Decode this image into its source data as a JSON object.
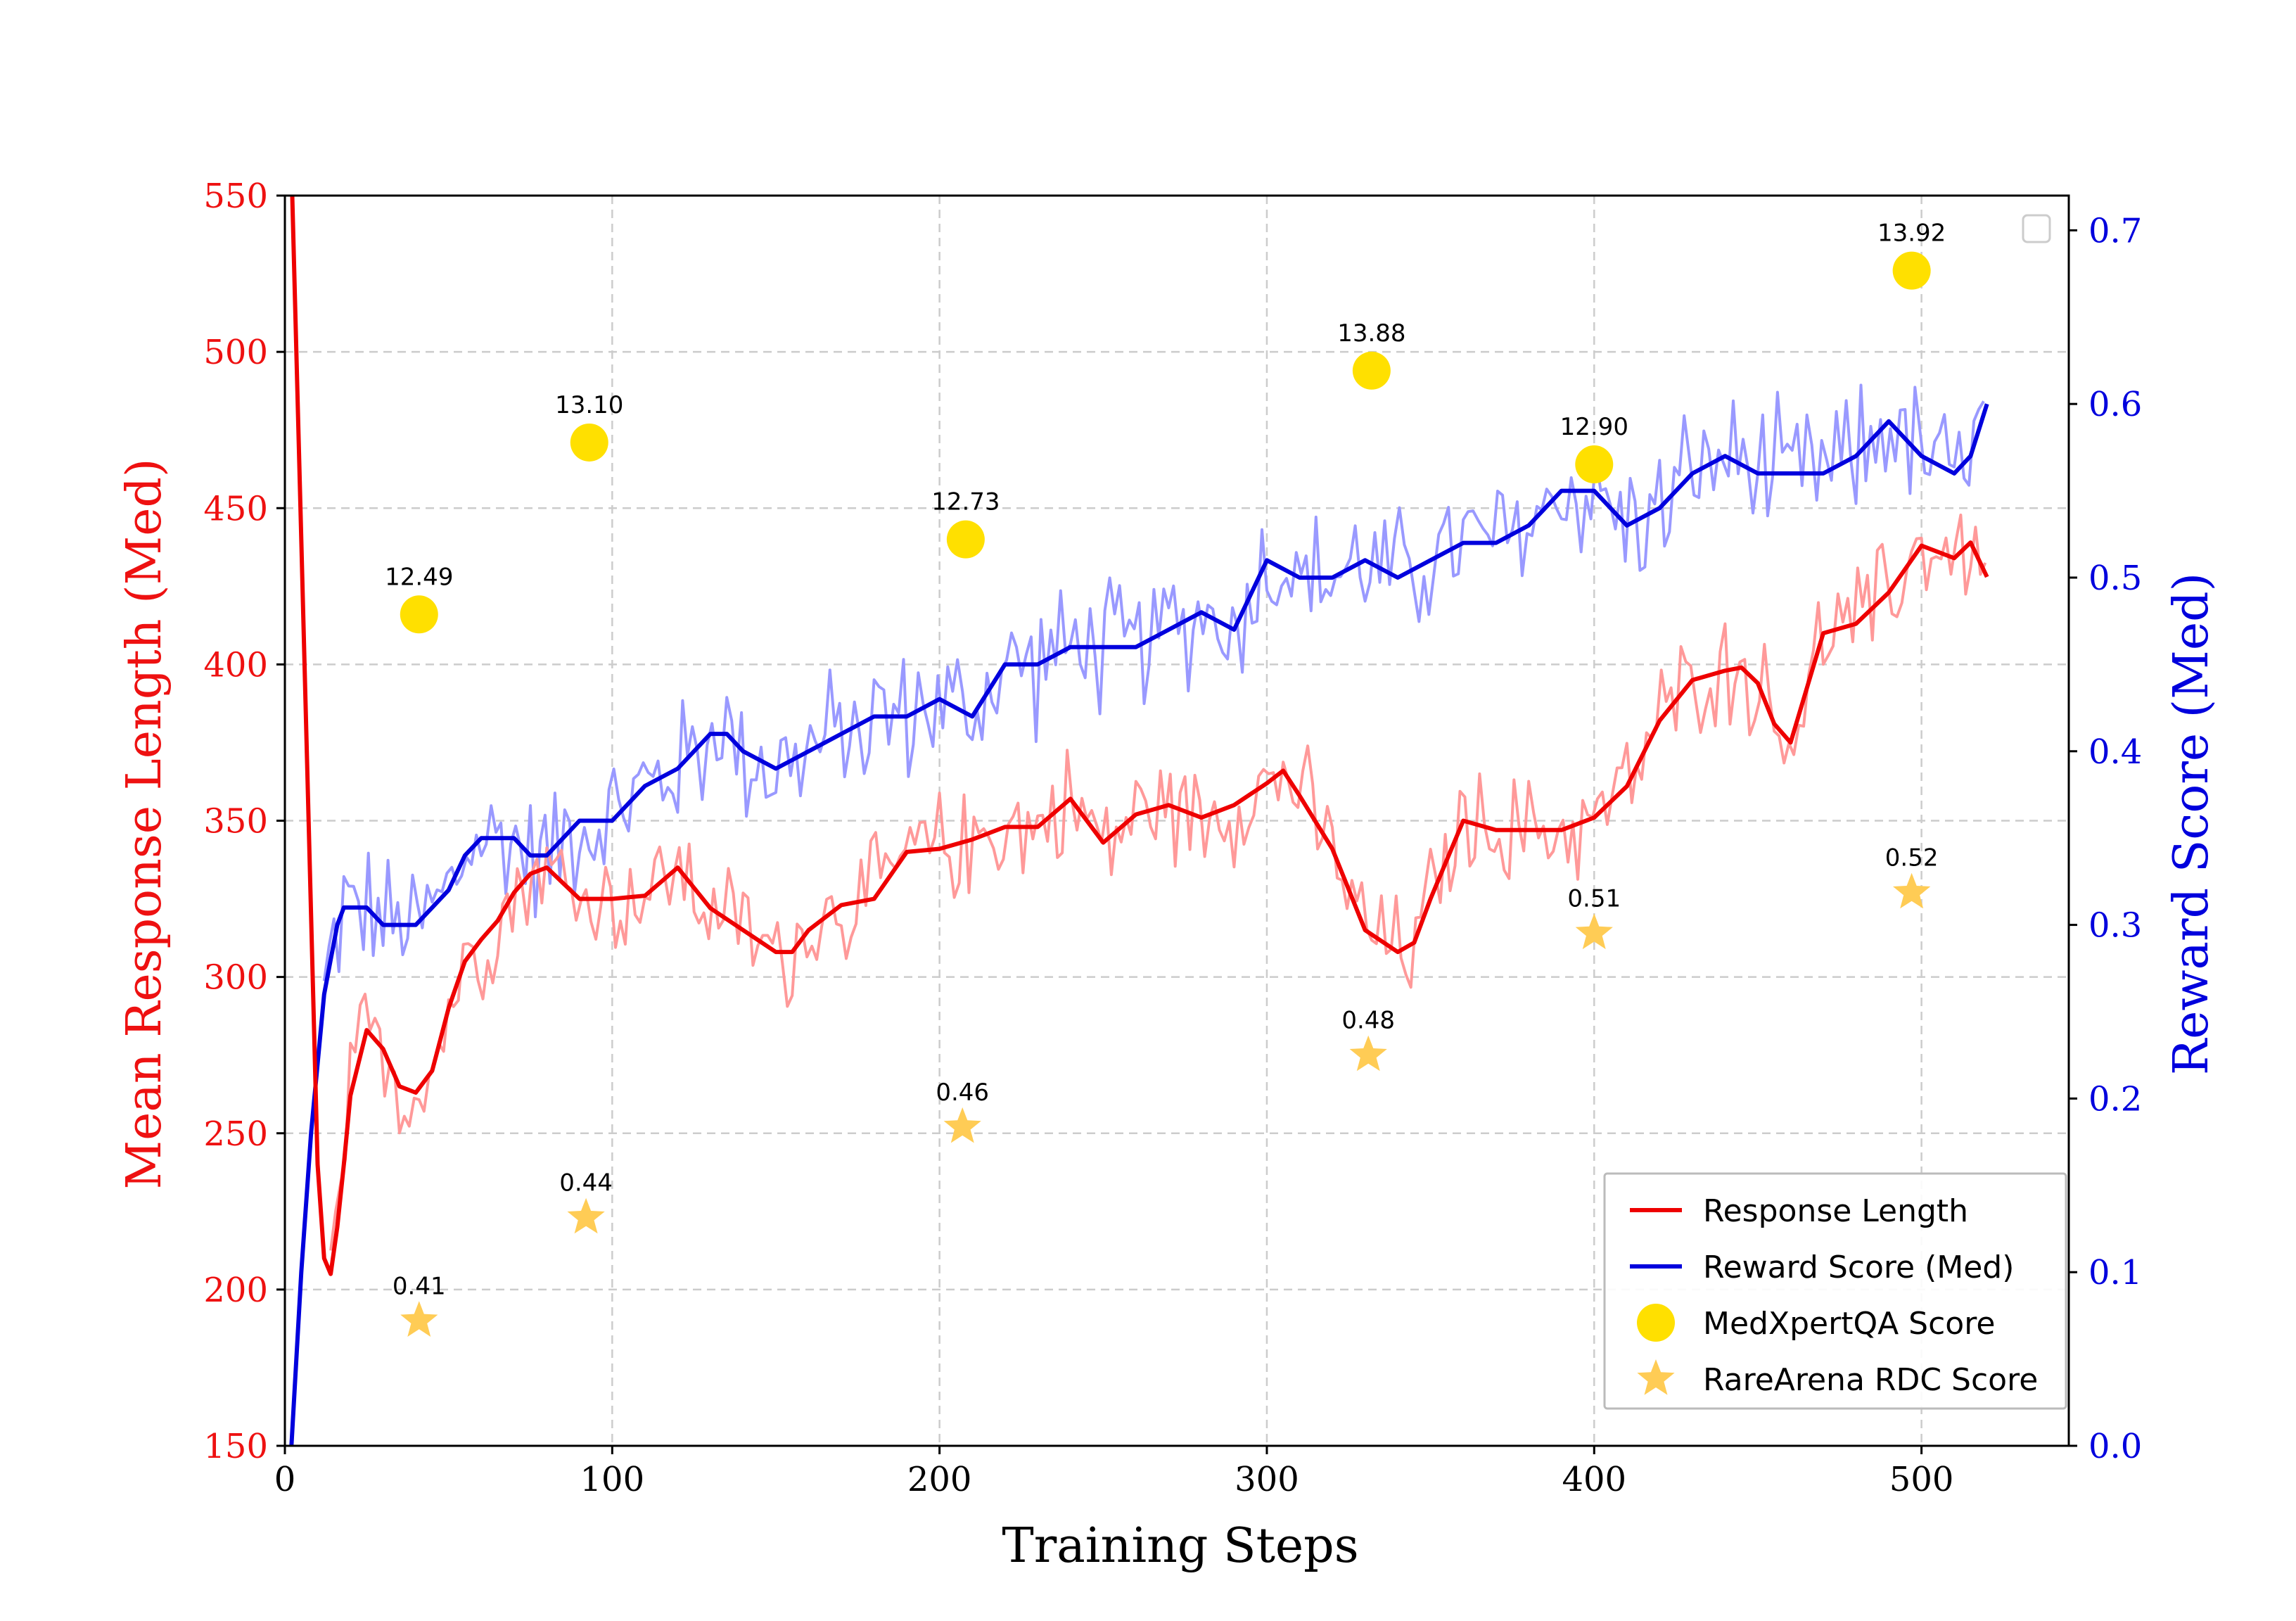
{
  "chart_data": {
    "type": "line",
    "xlabel": "Training Steps",
    "ylabel_left": "Mean Response Length (Med)",
    "ylabel_right": "Reward Score (Med)",
    "xlim": [
      0,
      545
    ],
    "ylim_left": [
      150,
      550
    ],
    "ylim_right": [
      0.0,
      0.72
    ],
    "x_ticks": [
      0,
      100,
      200,
      300,
      400,
      500
    ],
    "y_left_ticks": [
      150,
      200,
      250,
      300,
      350,
      400,
      450,
      500,
      550
    ],
    "y_right_ticks": [
      0.0,
      0.1,
      0.2,
      0.3,
      0.4,
      0.5,
      0.6,
      0.7
    ],
    "grid": true,
    "legend_position": "lower-right",
    "colors": {
      "left_axis": "#ee1111",
      "right_axis": "#0000dd",
      "length_line": "#ee0000",
      "length_raw": "#ff9999",
      "reward_line": "#0000dd",
      "reward_raw": "#9999ff",
      "medxpert": "#ffe000",
      "rarearena": "#ffcc55"
    },
    "series": [
      {
        "name": "Response  Length",
        "axis": "left",
        "x": [
          2,
          5,
          8,
          10,
          12,
          14,
          16,
          18,
          20,
          25,
          30,
          35,
          40,
          45,
          50,
          55,
          60,
          65,
          70,
          75,
          80,
          85,
          90,
          95,
          100,
          110,
          120,
          130,
          140,
          150,
          155,
          160,
          170,
          180,
          190,
          200,
          210,
          220,
          230,
          240,
          250,
          260,
          270,
          280,
          290,
          300,
          305,
          310,
          320,
          330,
          340,
          345,
          350,
          360,
          370,
          380,
          390,
          400,
          410,
          420,
          430,
          440,
          445,
          450,
          455,
          460,
          470,
          480,
          490,
          500,
          510,
          515,
          520
        ],
        "values": [
          560,
          440,
          320,
          240,
          210,
          205,
          220,
          240,
          262,
          283,
          277,
          265,
          263,
          270,
          290,
          305,
          312,
          318,
          327,
          333,
          335,
          330,
          325,
          325,
          325,
          326,
          335,
          322,
          315,
          308,
          308,
          315,
          323,
          325,
          340,
          341,
          344,
          348,
          348,
          357,
          343,
          352,
          355,
          351,
          355,
          362,
          366,
          358,
          341,
          315,
          308,
          311,
          325,
          350,
          347,
          347,
          347,
          351,
          361,
          382,
          395,
          398,
          399,
          394,
          381,
          375,
          410,
          413,
          423,
          438,
          434,
          439,
          428
        ]
      },
      {
        "name": "Reward Score (Med)",
        "axis": "right",
        "x": [
          2,
          5,
          8,
          10,
          12,
          14,
          16,
          18,
          20,
          25,
          30,
          35,
          40,
          45,
          50,
          55,
          60,
          65,
          70,
          75,
          80,
          85,
          90,
          95,
          100,
          110,
          120,
          130,
          135,
          140,
          150,
          160,
          170,
          180,
          190,
          200,
          210,
          220,
          230,
          240,
          250,
          260,
          270,
          280,
          290,
          300,
          310,
          320,
          330,
          340,
          350,
          360,
          370,
          380,
          390,
          400,
          410,
          420,
          430,
          440,
          450,
          460,
          470,
          480,
          490,
          500,
          510,
          515,
          520
        ],
        "values": [
          0.0,
          0.1,
          0.18,
          0.22,
          0.26,
          0.28,
          0.3,
          0.31,
          0.31,
          0.31,
          0.3,
          0.3,
          0.3,
          0.31,
          0.32,
          0.34,
          0.35,
          0.35,
          0.35,
          0.34,
          0.34,
          0.35,
          0.36,
          0.36,
          0.36,
          0.38,
          0.39,
          0.41,
          0.41,
          0.4,
          0.39,
          0.4,
          0.41,
          0.42,
          0.42,
          0.43,
          0.42,
          0.45,
          0.45,
          0.46,
          0.46,
          0.46,
          0.47,
          0.48,
          0.47,
          0.51,
          0.5,
          0.5,
          0.51,
          0.5,
          0.51,
          0.52,
          0.52,
          0.53,
          0.55,
          0.55,
          0.53,
          0.54,
          0.56,
          0.57,
          0.56,
          0.56,
          0.56,
          0.57,
          0.59,
          0.57,
          0.56,
          0.57,
          0.6
        ]
      },
      {
        "name": "MedXpertQA Score",
        "axis": "left",
        "type": "scatter",
        "marker": "circle",
        "x": [
          41,
          93,
          208,
          332,
          400,
          497
        ],
        "values": [
          416,
          471,
          440,
          494,
          464,
          526
        ],
        "labels": [
          "12.49",
          "13.10",
          "12.73",
          "13.88",
          "12.90",
          "13.92"
        ]
      },
      {
        "name": "RareArena RDC Score",
        "axis": "left",
        "type": "scatter",
        "marker": "star",
        "x": [
          41,
          92,
          207,
          331,
          400,
          497
        ],
        "values": [
          190,
          223,
          252,
          275,
          314,
          327
        ],
        "labels": [
          "0.41",
          "0.44",
          "0.46",
          "0.48",
          "0.51",
          "0.52"
        ]
      }
    ]
  }
}
